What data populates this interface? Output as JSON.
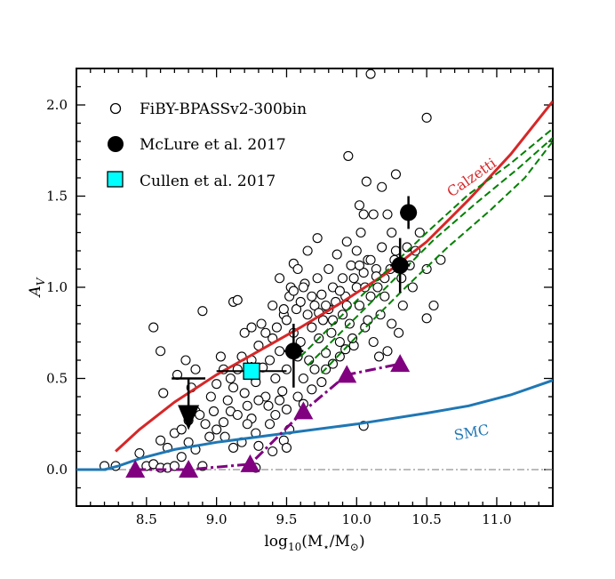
{
  "chart_data": {
    "type": "scatter",
    "xlabel": "log10(M⋆/M⊙)",
    "xlabel_parts": {
      "base": "log",
      "sub": "10",
      "rest": "(M",
      "star": "⋆",
      "slash": "/M",
      "sun": "⊙",
      "close": ")"
    },
    "ylabel": "A_V",
    "ylabel_parts": {
      "main": "A",
      "sub": "V"
    },
    "xlim": [
      8.0,
      11.4
    ],
    "ylim": [
      -0.2,
      2.2
    ],
    "xticks": [
      8.5,
      9.0,
      9.5,
      10.0,
      10.5,
      11.0
    ],
    "xtick_labels": [
      "8.5",
      "9.0",
      "9.5",
      "10.0",
      "10.5",
      "11.0"
    ],
    "yticks": [
      0.0,
      0.5,
      1.0,
      1.5,
      2.0
    ],
    "ytick_labels": [
      "0.0",
      "0.5",
      "1.0",
      "1.5",
      "2.0"
    ],
    "legend": {
      "placement": "top-left",
      "entries": [
        {
          "label": "FiBY-BPASSv2-300bin",
          "marker": "open-circle"
        },
        {
          "label": "McLure et al. 2017",
          "marker": "filled-circle"
        },
        {
          "label": "Cullen et al. 2017",
          "marker": "cyan-square"
        }
      ]
    },
    "colors": {
      "calzetti": "#d62728",
      "smc": "#1f77b4",
      "green": "#008000",
      "purple": "#800080",
      "cyan": "#00ffff"
    },
    "curves": {
      "calzetti": {
        "label": "Calzetti",
        "x": [
          8.28,
          8.45,
          8.7,
          9.0,
          9.3,
          9.6,
          9.9,
          10.2,
          10.5,
          10.8,
          11.1,
          11.4
        ],
        "y": [
          0.1,
          0.22,
          0.37,
          0.52,
          0.65,
          0.78,
          0.92,
          1.07,
          1.25,
          1.48,
          1.73,
          2.02
        ]
      },
      "smc": {
        "label": "SMC",
        "x": [
          8.0,
          8.2,
          8.3,
          8.45,
          8.7,
          9.0,
          9.5,
          10.0,
          10.5,
          10.8,
          11.1,
          11.4
        ],
        "y": [
          0.0,
          0.0,
          0.02,
          0.06,
          0.11,
          0.15,
          0.2,
          0.25,
          0.31,
          0.35,
          0.41,
          0.49
        ]
      },
      "green_dashed": [
        {
          "x": [
            9.6,
            9.9,
            10.2,
            10.5,
            10.8,
            11.1,
            11.4
          ],
          "y": [
            0.62,
            0.85,
            1.08,
            1.3,
            1.51,
            1.68,
            1.87
          ]
        },
        {
          "x": [
            9.65,
            9.95,
            10.25,
            10.55,
            10.85,
            11.15,
            11.4
          ],
          "y": [
            0.57,
            0.8,
            1.03,
            1.26,
            1.46,
            1.65,
            1.82
          ]
        },
        {
          "x": [
            9.75,
            10.05,
            10.35,
            10.65,
            10.95,
            11.2,
            11.4
          ],
          "y": [
            0.53,
            0.77,
            1.0,
            1.22,
            1.42,
            1.6,
            1.8
          ]
        }
      ],
      "purple_dashdot": {
        "x": [
          8.42,
          8.8,
          9.24,
          9.62,
          9.93,
          10.31
        ],
        "y": [
          0.0,
          0.0,
          0.03,
          0.32,
          0.52,
          0.58
        ]
      },
      "zero_line": {
        "x": [
          8.0,
          11.4
        ],
        "y": [
          0.0,
          0.0
        ]
      }
    },
    "mclure": [
      {
        "x": 8.8,
        "y": 0.5,
        "yerr_low": 0.0,
        "yerr_high": 0.0,
        "upper_limit": true,
        "xerr": 0.12
      },
      {
        "x": 9.55,
        "y": 0.65,
        "yerr_low": 0.2,
        "yerr_high": 0.15,
        "xerr": 0.07
      },
      {
        "x": 10.31,
        "y": 1.12,
        "yerr_low": 0.15,
        "yerr_high": 0.15,
        "xerr": 0.07
      },
      {
        "x": 10.37,
        "y": 1.41,
        "yerr_low": 0.09,
        "yerr_high": 0.09,
        "xerr": 0.06
      }
    ],
    "cullen": [
      {
        "x": 9.25,
        "y": 0.54,
        "xerr": 0.25,
        "yerr": 0.05
      }
    ],
    "fiby_points": [
      [
        8.2,
        0.02
      ],
      [
        8.28,
        0.02
      ],
      [
        8.45,
        0.09
      ],
      [
        8.5,
        0.02
      ],
      [
        8.55,
        0.03
      ],
      [
        8.6,
        0.01
      ],
      [
        8.65,
        0.01
      ],
      [
        8.7,
        0.02
      ],
      [
        8.75,
        0.07
      ],
      [
        8.8,
        0.15
      ],
      [
        8.85,
        0.11
      ],
      [
        8.9,
        0.02
      ],
      [
        8.55,
        0.78
      ],
      [
        8.6,
        0.65
      ],
      [
        8.9,
        0.87
      ],
      [
        9.12,
        0.92
      ],
      [
        9.15,
        0.93
      ],
      [
        8.62,
        0.42
      ],
      [
        8.72,
        0.52
      ],
      [
        8.78,
        0.6
      ],
      [
        8.82,
        0.45
      ],
      [
        8.85,
        0.32
      ],
      [
        8.6,
        0.16
      ],
      [
        8.65,
        0.12
      ],
      [
        8.7,
        0.2
      ],
      [
        8.75,
        0.22
      ],
      [
        8.8,
        0.27
      ],
      [
        8.88,
        0.3
      ],
      [
        8.92,
        0.25
      ],
      [
        8.95,
        0.18
      ],
      [
        9.0,
        0.22
      ],
      [
        9.05,
        0.26
      ],
      [
        8.96,
        0.4
      ],
      [
        9.0,
        0.47
      ],
      [
        9.05,
        0.55
      ],
      [
        9.08,
        0.38
      ],
      [
        9.1,
        0.32
      ],
      [
        9.12,
        0.45
      ],
      [
        9.15,
        0.55
      ],
      [
        9.18,
        0.62
      ],
      [
        9.2,
        0.42
      ],
      [
        9.22,
        0.35
      ],
      [
        9.25,
        0.28
      ],
      [
        9.28,
        0.48
      ],
      [
        9.3,
        0.68
      ],
      [
        9.32,
        0.8
      ],
      [
        9.33,
        0.56
      ],
      [
        9.35,
        0.4
      ],
      [
        9.37,
        0.35
      ],
      [
        9.38,
        0.6
      ],
      [
        9.4,
        0.72
      ],
      [
        9.42,
        0.5
      ],
      [
        9.43,
        0.78
      ],
      [
        9.45,
        0.65
      ],
      [
        9.47,
        0.43
      ],
      [
        9.48,
        0.85
      ],
      [
        9.5,
        0.82
      ],
      [
        9.5,
        0.55
      ],
      [
        9.52,
        0.95
      ],
      [
        9.53,
        1.0
      ],
      [
        9.55,
        1.13
      ],
      [
        9.55,
        0.75
      ],
      [
        9.57,
        0.88
      ],
      [
        9.58,
        0.62
      ],
      [
        9.6,
        0.92
      ],
      [
        9.6,
        0.7
      ],
      [
        9.62,
        0.5
      ],
      [
        9.63,
        1.02
      ],
      [
        9.65,
        0.85
      ],
      [
        9.66,
        0.6
      ],
      [
        9.68,
        0.78
      ],
      [
        9.7,
        0.9
      ],
      [
        9.7,
        0.55
      ],
      [
        9.72,
        1.05
      ],
      [
        9.73,
        0.72
      ],
      [
        9.75,
        0.96
      ],
      [
        9.76,
        0.82
      ],
      [
        9.78,
        0.64
      ],
      [
        9.8,
        0.88
      ],
      [
        9.8,
        1.1
      ],
      [
        9.82,
        0.75
      ],
      [
        9.83,
        1.0
      ],
      [
        9.85,
        0.92
      ],
      [
        9.86,
        1.18
      ],
      [
        9.88,
        0.7
      ],
      [
        9.9,
        0.85
      ],
      [
        9.9,
        1.05
      ],
      [
        9.92,
        0.95
      ],
      [
        9.93,
        1.25
      ],
      [
        9.95,
        0.8
      ],
      [
        9.96,
        1.12
      ],
      [
        9.98,
        0.68
      ],
      [
        10.0,
        1.0
      ],
      [
        10.0,
        1.2
      ],
      [
        10.02,
        0.9
      ],
      [
        10.03,
        1.3
      ],
      [
        10.05,
        1.08
      ],
      [
        10.06,
        0.78
      ],
      [
        10.08,
        1.15
      ],
      [
        10.1,
        0.95
      ],
      [
        10.12,
        1.4
      ],
      [
        10.14,
        1.1
      ],
      [
        10.15,
        1.0
      ],
      [
        10.17,
        0.85
      ],
      [
        10.18,
        1.22
      ],
      [
        10.2,
        1.05
      ],
      [
        10.22,
        0.65
      ],
      [
        10.25,
        1.3
      ],
      [
        10.27,
        1.15
      ],
      [
        10.3,
        0.75
      ],
      [
        10.33,
        0.9
      ],
      [
        10.36,
        1.22
      ],
      [
        10.38,
        1.12
      ],
      [
        10.4,
        1.0
      ],
      [
        10.45,
        1.3
      ],
      [
        10.5,
        1.1
      ],
      [
        10.55,
        0.9
      ],
      [
        10.6,
        1.15
      ],
      [
        10.5,
        0.83
      ],
      [
        10.05,
        0.24
      ],
      [
        10.5,
        1.93
      ],
      [
        10.07,
        1.58
      ],
      [
        9.94,
        1.72
      ],
      [
        10.18,
        1.55
      ],
      [
        10.22,
        1.4
      ],
      [
        10.28,
        1.62
      ],
      [
        10.02,
        1.45
      ],
      [
        10.05,
        1.4
      ],
      [
        9.72,
        1.27
      ],
      [
        9.65,
        1.2
      ],
      [
        9.48,
        0.88
      ],
      [
        9.55,
        0.98
      ],
      [
        9.35,
        0.75
      ],
      [
        9.25,
        0.6
      ],
      [
        9.2,
        0.75
      ],
      [
        9.1,
        0.5
      ],
      [
        8.98,
        0.32
      ],
      [
        9.06,
        0.18
      ],
      [
        9.12,
        0.12
      ],
      [
        9.18,
        0.15
      ],
      [
        9.22,
        0.25
      ],
      [
        9.28,
        0.2
      ],
      [
        9.3,
        0.13
      ],
      [
        9.38,
        0.25
      ],
      [
        9.42,
        0.3
      ],
      [
        9.45,
        0.38
      ],
      [
        9.48,
        0.16
      ],
      [
        9.5,
        0.33
      ],
      [
        9.52,
        0.22
      ],
      [
        9.58,
        0.4
      ],
      [
        9.62,
        0.36
      ],
      [
        9.68,
        0.44
      ],
      [
        9.75,
        0.48
      ],
      [
        9.78,
        0.55
      ],
      [
        9.83,
        0.58
      ],
      [
        9.88,
        0.62
      ],
      [
        9.92,
        0.66
      ],
      [
        9.97,
        0.72
      ],
      [
        10.08,
        0.82
      ],
      [
        10.12,
        0.7
      ],
      [
        10.16,
        0.62
      ],
      [
        10.25,
        0.8
      ],
      [
        9.28,
        0.01
      ],
      [
        9.4,
        0.1
      ],
      [
        9.5,
        0.12
      ],
      [
        9.3,
        0.38
      ],
      [
        9.15,
        0.3
      ],
      [
        8.85,
        0.55
      ],
      [
        9.03,
        0.62
      ],
      [
        9.25,
        0.78
      ],
      [
        9.4,
        0.9
      ],
      [
        9.45,
        1.05
      ],
      [
        9.58,
        1.1
      ],
      [
        9.62,
        1.0
      ],
      [
        9.68,
        0.95
      ],
      [
        9.73,
        0.86
      ],
      [
        9.78,
        0.9
      ],
      [
        9.83,
        0.82
      ],
      [
        9.88,
        0.98
      ],
      [
        9.93,
        0.9
      ],
      [
        9.98,
        1.05
      ],
      [
        10.02,
        1.12
      ],
      [
        10.06,
        1.0
      ],
      [
        10.1,
        1.15
      ],
      [
        10.14,
        1.06
      ],
      [
        10.2,
        0.95
      ],
      [
        10.24,
        1.1
      ],
      [
        10.28,
        1.2
      ],
      [
        10.32,
        1.05
      ],
      [
        10.42,
        1.2
      ],
      [
        10.1,
        2.17
      ]
    ]
  }
}
